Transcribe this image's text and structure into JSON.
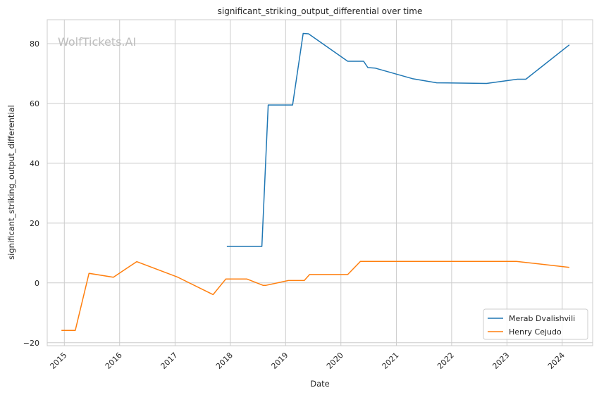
{
  "watermark": "WolfTickets.AI",
  "colors": {
    "grid": "#cccccc",
    "axes_edge": "#cccccc",
    "series": [
      "#1f77b4",
      "#ff7f0e"
    ]
  },
  "chart_data": {
    "type": "line",
    "title": "significant_striking_output_differential over time",
    "xlabel": "Date",
    "ylabel": "significant_striking_output_differential",
    "x_scale": "date",
    "xlim": [
      "2014-09-10",
      "2024-07-20"
    ],
    "ylim": [
      -21,
      88
    ],
    "x_ticks": [
      "2015",
      "2016",
      "2017",
      "2018",
      "2019",
      "2020",
      "2021",
      "2022",
      "2023",
      "2024"
    ],
    "y_ticks": [
      -20,
      0,
      20,
      40,
      60,
      80
    ],
    "grid": true,
    "legend_position": "lower-right",
    "series": [
      {
        "name": "Merab Dvalishvili",
        "points": [
          {
            "x": "2017-12-09",
            "y": 12.2
          },
          {
            "x": "2018-07-28",
            "y": 12.2
          },
          {
            "x": "2018-09-08",
            "y": 59.5
          },
          {
            "x": "2019-02-16",
            "y": 59.5
          },
          {
            "x": "2019-04-27",
            "y": 83.4
          },
          {
            "x": "2019-06-01",
            "y": 83.3
          },
          {
            "x": "2020-02-15",
            "y": 74.1
          },
          {
            "x": "2020-05-30",
            "y": 74.1
          },
          {
            "x": "2020-06-27",
            "y": 72.0
          },
          {
            "x": "2020-08-15",
            "y": 71.8
          },
          {
            "x": "2021-04-17",
            "y": 68.3
          },
          {
            "x": "2021-09-25",
            "y": 66.9
          },
          {
            "x": "2022-08-20",
            "y": 66.7
          },
          {
            "x": "2023-03-11",
            "y": 68.1
          },
          {
            "x": "2023-05-06",
            "y": 68.1
          },
          {
            "x": "2024-02-17",
            "y": 79.6
          }
        ]
      },
      {
        "name": "Henry Cejudo",
        "points": [
          {
            "x": "2014-12-13",
            "y": -15.9
          },
          {
            "x": "2015-03-14",
            "y": -15.9
          },
          {
            "x": "2015-06-13",
            "y": 3.2
          },
          {
            "x": "2015-11-21",
            "y": 1.9
          },
          {
            "x": "2016-04-23",
            "y": 7.1
          },
          {
            "x": "2017-01-15",
            "y": 2.0
          },
          {
            "x": "2017-09-09",
            "y": -3.9
          },
          {
            "x": "2017-12-02",
            "y": 1.3
          },
          {
            "x": "2018-04-21",
            "y": 1.3
          },
          {
            "x": "2018-08-04",
            "y": -0.8
          },
          {
            "x": "2018-08-25",
            "y": -0.8
          },
          {
            "x": "2019-01-19",
            "y": 0.8
          },
          {
            "x": "2019-05-04",
            "y": 0.8
          },
          {
            "x": "2019-06-08",
            "y": 2.8
          },
          {
            "x": "2020-02-15",
            "y": 2.8
          },
          {
            "x": "2020-05-09",
            "y": 7.2
          },
          {
            "x": "2023-03-04",
            "y": 7.2
          },
          {
            "x": "2024-02-17",
            "y": 5.2
          }
        ]
      }
    ]
  }
}
